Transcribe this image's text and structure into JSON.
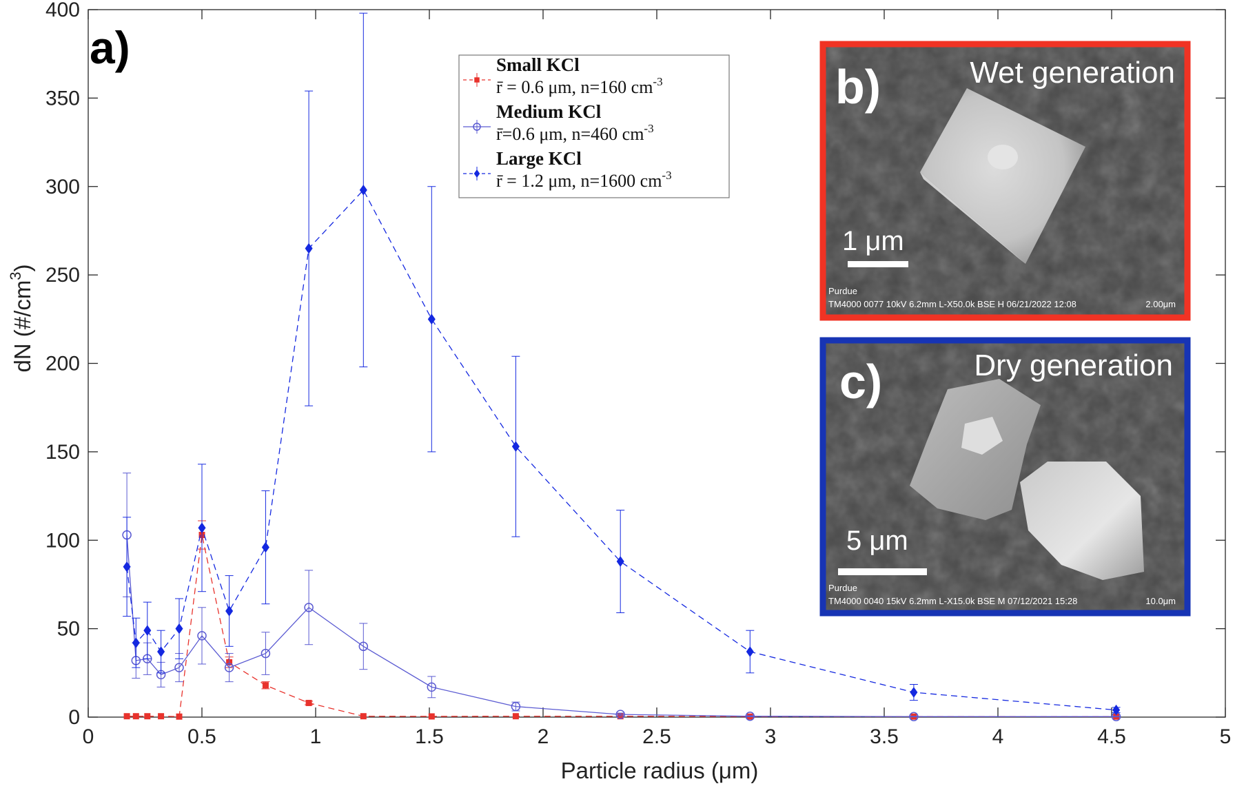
{
  "chart_data": {
    "type": "scatter",
    "panel_label": "a)",
    "xlabel": "Particle radius (μm)",
    "ylabel": "dN (#/cm",
    "ylabel_sup": "3",
    "ylabel_end": ")",
    "xlim": [
      0,
      5
    ],
    "ylim": [
      0,
      400
    ],
    "xticks": [
      0,
      0.5,
      1,
      1.5,
      2,
      2.5,
      3,
      3.5,
      4,
      4.5,
      5
    ],
    "xtick_labels": [
      "0",
      "0.5",
      "1",
      "1.5",
      "2",
      "2.5",
      "3",
      "3.5",
      "4",
      "4.5",
      "5"
    ],
    "yticks": [
      0,
      50,
      100,
      150,
      200,
      250,
      300,
      350,
      400
    ],
    "ytick_labels": [
      "0",
      "50",
      "100",
      "150",
      "200",
      "250",
      "300",
      "350",
      "400"
    ],
    "grid": false,
    "legend_position": "top-center",
    "x": [
      0.17,
      0.21,
      0.26,
      0.32,
      0.4,
      0.5,
      0.62,
      0.78,
      0.97,
      1.21,
      1.51,
      1.88,
      2.34,
      2.91,
      3.63,
      4.52
    ],
    "series": [
      {
        "name": "Small KCl",
        "legend_detail": "r̄ = 0.6 μm, n=160 cm",
        "legend_sup": "-3",
        "color": "#e8322c",
        "marker": "square",
        "line_style": "dashed",
        "values": [
          0.5,
          0.5,
          0.5,
          0.5,
          0.3,
          103,
          31,
          18,
          8,
          0.5,
          0.4,
          0.5,
          0.5,
          0.3,
          0.3,
          0.3
        ],
        "errors": [
          0,
          0,
          0,
          0,
          0,
          8,
          3,
          2,
          1,
          0,
          0,
          0,
          0,
          0,
          0,
          0
        ]
      },
      {
        "name": "Medium KCl",
        "legend_detail": "r̄=0.6 μm, n=460 cm",
        "legend_sup": "-3",
        "color": "#5a5ad2",
        "marker": "open-circle",
        "line_style": "solid",
        "values": [
          103,
          32,
          33,
          24,
          28,
          46,
          28,
          36,
          62,
          40,
          17,
          6,
          1.5,
          0.5,
          0.3,
          0.3
        ],
        "errors": [
          35,
          10,
          9,
          7,
          8,
          16,
          8,
          12,
          21,
          13,
          6,
          2.5,
          0.8,
          0.3,
          0.2,
          0.2
        ]
      },
      {
        "name": "Large KCl",
        "legend_detail": "r̄ = 1.2 μm, n=1600 cm",
        "legend_sup": "-3",
        "color": "#1428e0",
        "marker": "filled-diamond",
        "line_style": "dashed",
        "values": [
          85,
          42,
          49,
          37,
          50,
          107,
          60,
          96,
          265,
          298,
          225,
          153,
          88,
          37,
          14,
          4
        ],
        "errors": [
          28,
          14,
          16,
          12,
          17,
          36,
          20,
          32,
          89,
          100,
          75,
          51,
          29,
          12,
          4.5,
          1.5
        ]
      }
    ],
    "insets": [
      {
        "label": "b)",
        "title": "Wet generation",
        "scale_label": "1 μm",
        "meta_top": "Purdue",
        "meta_bottom": "TM4000 0077  10kV 6.2mm L-X50.0k BSE H 06/21/2022 12:08",
        "meta_scale": "2.00μm",
        "border_color": "#f03324"
      },
      {
        "label": "c)",
        "title": "Dry generation",
        "scale_label": "5 μm",
        "meta_top": "Purdue",
        "meta_bottom": "TM4000 0040  15kV 6.2mm L-X15.0k BSE M 07/12/2021 15:28",
        "meta_scale": "10.0μm",
        "border_color": "#1734b4"
      }
    ]
  }
}
